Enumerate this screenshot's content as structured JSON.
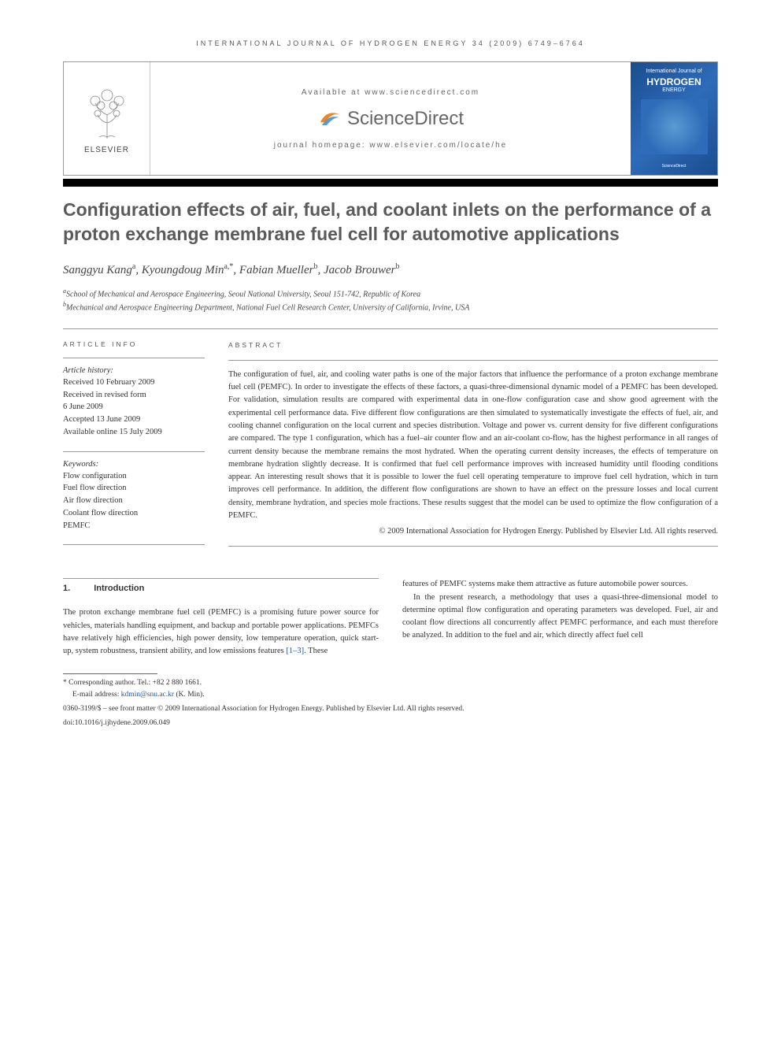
{
  "journal_header": "INTERNATIONAL JOURNAL OF HYDROGEN ENERGY 34 (2009) 6749–6764",
  "banner": {
    "elsevier": "ELSEVIER",
    "available": "Available at www.sciencedirect.com",
    "sciencedirect": "ScienceDirect",
    "homepage": "journal homepage: www.elsevier.com/locate/he",
    "cover_top": "International Journal of",
    "cover_main": "HYDROGEN",
    "cover_sub": "ENERGY",
    "cover_footer": "ScienceDirect"
  },
  "title": "Configuration effects of air, fuel, and coolant inlets on the performance of a proton exchange membrane fuel cell for automotive applications",
  "authors_html": "Sanggyu Kang<sup>a</sup>, Kyoungdoug Min<sup>a,*</sup>, Fabian Mueller<sup>b</sup>, Jacob Brouwer<sup>b</sup>",
  "affiliations": {
    "a": "School of Mechanical and Aerospace Engineering, Seoul National University, Seoul 151-742, Republic of Korea",
    "b": "Mechanical and Aerospace Engineering Department, National Fuel Cell Research Center, University of California, Irvine, USA"
  },
  "article_info": {
    "heading": "ARTICLE INFO",
    "history_label": "Article history:",
    "received": "Received 10 February 2009",
    "revised1": "Received in revised form",
    "revised2": "6 June 2009",
    "accepted": "Accepted 13 June 2009",
    "online": "Available online 15 July 2009",
    "keywords_label": "Keywords:",
    "keywords": [
      "Flow configuration",
      "Fuel flow direction",
      "Air flow direction",
      "Coolant flow direction",
      "PEMFC"
    ]
  },
  "abstract": {
    "heading": "ABSTRACT",
    "text": "The configuration of fuel, air, and cooling water paths is one of the major factors that influence the performance of a proton exchange membrane fuel cell (PEMFC). In order to investigate the effects of these factors, a quasi-three-dimensional dynamic model of a PEMFC has been developed. For validation, simulation results are compared with experimental data in one-flow configuration case and show good agreement with the experimental cell performance data. Five different flow configurations are then simulated to systematically investigate the effects of fuel, air, and cooling channel configuration on the local current and species distribution. Voltage and power vs. current density for five different configurations are compared. The type 1 configuration, which has a fuel–air counter flow and an air-coolant co-flow, has the highest performance in all ranges of current density because the membrane remains the most hydrated. When the operating current density increases, the effects of temperature on membrane hydration slightly decrease. It is confirmed that fuel cell performance improves with increased humidity until flooding conditions appear. An interesting result shows that it is possible to lower the fuel cell operating temperature to improve fuel cell hydration, which in turn improves cell performance. In addition, the different flow configurations are shown to have an effect on the pressure losses and local current density, membrane hydration, and species mole fractions. These results suggest that the model can be used to optimize the flow configuration of a PEMFC.",
    "copyright": "© 2009 International Association for Hydrogen Energy. Published by Elsevier Ltd. All rights reserved."
  },
  "section1": {
    "num": "1.",
    "title": "Introduction",
    "col1": "The proton exchange membrane fuel cell (PEMFC) is a promising future power source for vehicles, materials handling equipment, and backup and portable power applications. PEMFCs have relatively high efficiencies, high power density, low temperature operation, quick start-up, system robustness, transient ability, and low emissions features [1–3]. These",
    "col2_p1": "features of PEMFC systems make them attractive as future automobile power sources.",
    "col2_p2": "In the present research, a methodology that uses a quasi-three-dimensional model to determine optimal flow configuration and operating parameters was developed. Fuel, air and coolant flow directions all concurrently affect PEMFC performance, and each must therefore be analyzed. In addition to the fuel and air, which directly affect fuel cell"
  },
  "footnotes": {
    "corresponding": "* Corresponding author. Tel.: +82 2 880 1661.",
    "email_label": "E-mail address: ",
    "email": "kdmin@snu.ac.kr",
    "email_suffix": " (K. Min).",
    "issn": "0360-3199/$ – see front matter © 2009 International Association for Hydrogen Energy. Published by Elsevier Ltd. All rights reserved.",
    "doi": "doi:10.1016/j.ijhydene.2009.06.049"
  },
  "colors": {
    "text": "#333333",
    "heading_gray": "#5a5a5a",
    "link": "#2156a5",
    "cover_blue": "#1a4d8f",
    "sd_orange": "#f58220"
  }
}
